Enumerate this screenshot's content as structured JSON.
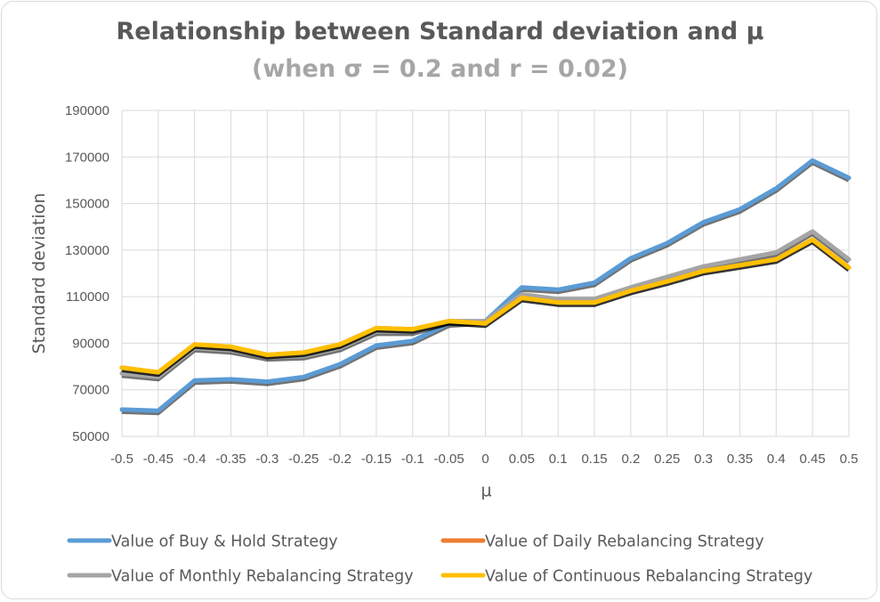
{
  "chart_data": {
    "type": "line",
    "title": "Relationship between Standard deviation and μ",
    "subtitle": "(when σ = 0.2 and r = 0.02)",
    "xlabel": "μ",
    "ylabel": "Standard deviation",
    "x": [
      "-0.5",
      "-0.45",
      "-0.4",
      "-0.35",
      "-0.3",
      "-0.25",
      "-0.2",
      "-0.15",
      "-0.1",
      "-0.05",
      "0",
      "0.05",
      "0.1",
      "0.15",
      "0.2",
      "0.25",
      "0.3",
      "0.35",
      "0.4",
      "0.45",
      "0.5"
    ],
    "ylim": [
      50000,
      190000
    ],
    "yticks": [
      50000,
      70000,
      90000,
      110000,
      130000,
      150000,
      170000,
      190000
    ],
    "ytick_labels": [
      "50000",
      "70000",
      "90000",
      "110000",
      "130000",
      "150000",
      "170000",
      "190000"
    ],
    "grid": true,
    "legend_position": "bottom",
    "series": [
      {
        "name": "Value of Buy & Hold Strategy",
        "color": "#5b9bd5",
        "values": [
          61500,
          61000,
          74000,
          74500,
          73500,
          75500,
          81000,
          89000,
          91000,
          98500,
          99500,
          114000,
          113000,
          116000,
          126500,
          133000,
          142000,
          147500,
          156500,
          168500,
          161000
        ]
      },
      {
        "name": "Value of Daily Rebalancing Strategy",
        "color": "#ed7d31",
        "values": [
          79500,
          77500,
          89500,
          88500,
          85000,
          86000,
          89500,
          96500,
          96000,
          99500,
          98500,
          109500,
          107500,
          107500,
          112500,
          116500,
          121000,
          123500,
          126000,
          134500,
          122500
        ]
      },
      {
        "name": "Value of Monthly Rebalancing Strategy",
        "color": "#a5a5a5",
        "values": [
          77000,
          75500,
          88000,
          87000,
          84000,
          84500,
          88000,
          95000,
          95000,
          99500,
          99500,
          111000,
          109000,
          109000,
          114000,
          118500,
          123000,
          126000,
          129000,
          138000,
          126000
        ]
      },
      {
        "name": "Value of Continuous Rebalancing Strategy",
        "color": "#ffc000",
        "values": [
          79500,
          77500,
          89500,
          88500,
          85000,
          86000,
          89500,
          96500,
          96000,
          99500,
          98500,
          109500,
          107500,
          107500,
          112500,
          116500,
          121000,
          123500,
          126000,
          134500,
          122500
        ]
      }
    ]
  }
}
